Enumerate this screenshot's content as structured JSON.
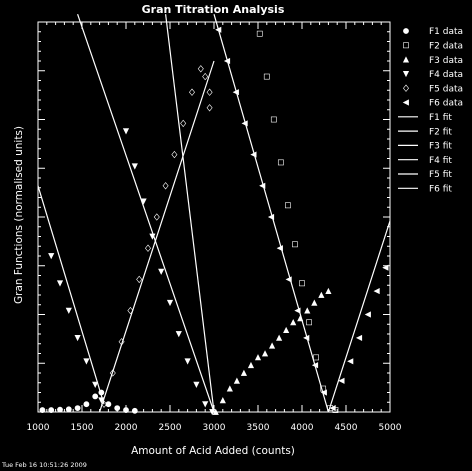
{
  "chart_data": {
    "type": "scatter",
    "title": "Gran Titration Analysis",
    "xlabel": "Amount of Acid Added (counts)",
    "ylabel": "Gran Functions (normalised units)",
    "xlim": [
      1000,
      5000
    ],
    "ylim": [
      0,
      1
    ],
    "xticks": [
      "1000",
      "1500",
      "2000",
      "2500",
      "3000",
      "3500",
      "4000",
      "4500",
      "5000"
    ],
    "footer": "Tue Feb 16 10:51:26 2009",
    "colors": {
      "background": "#000000",
      "foreground": "#ffffff"
    },
    "series": [
      {
        "name": "F1 data",
        "marker": "circle",
        "x": [
          1050,
          1150,
          1250,
          1350,
          1450,
          1550,
          1650,
          1720,
          1800,
          1900,
          2000,
          2100
        ],
        "y": [
          0.005,
          0.005,
          0.006,
          0.007,
          0.01,
          0.02,
          0.04,
          0.05,
          0.02,
          0.01,
          0.005,
          0.003
        ]
      },
      {
        "name": "F2 data",
        "marker": "square",
        "x": [
          3520,
          3600,
          3680,
          3760,
          3840,
          3920,
          4000,
          4080,
          4160,
          4240,
          4320,
          4380
        ],
        "y": [
          0.97,
          0.86,
          0.75,
          0.64,
          0.53,
          0.43,
          0.33,
          0.23,
          0.14,
          0.06,
          0.01,
          0.005
        ]
      },
      {
        "name": "F3 data",
        "marker": "triangle-up",
        "x": [
          3020,
          3100,
          3180,
          3260,
          3340,
          3420,
          3500,
          3580,
          3660,
          3740,
          3820,
          3900,
          3980,
          4060,
          4140,
          4220,
          4300
        ],
        "y": [
          0.0,
          0.03,
          0.06,
          0.08,
          0.1,
          0.12,
          0.14,
          0.15,
          0.17,
          0.19,
          0.21,
          0.23,
          0.24,
          0.26,
          0.28,
          0.3,
          0.31
        ]
      },
      {
        "name": "F4 data",
        "marker": "triangle-down",
        "x": [
          1150,
          1250,
          1350,
          1450,
          1550,
          1650,
          1720,
          2000,
          2100,
          2200,
          2300,
          2400,
          2500,
          2600,
          2700,
          2800,
          2900,
          2980
        ],
        "y": [
          0.4,
          0.33,
          0.26,
          0.19,
          0.13,
          0.07,
          0.03,
          0.72,
          0.63,
          0.54,
          0.45,
          0.36,
          0.28,
          0.2,
          0.13,
          0.07,
          0.02,
          0.0
        ]
      },
      {
        "name": "F5 data",
        "marker": "diamond",
        "x": [
          1750,
          1850,
          1950,
          2050,
          2150,
          2250,
          2350,
          2450,
          2550,
          2650,
          2750,
          2850,
          2900,
          2950,
          2950
        ],
        "y": [
          0.02,
          0.1,
          0.18,
          0.26,
          0.34,
          0.42,
          0.5,
          0.58,
          0.66,
          0.74,
          0.82,
          0.88,
          0.86,
          0.82,
          0.78
        ]
      },
      {
        "name": "F6 data",
        "marker": "triangle-left",
        "x": [
          3050,
          3150,
          3250,
          3350,
          3450,
          3550,
          3650,
          3750,
          3850,
          3950,
          4050,
          4150,
          4250,
          4350,
          4450,
          4550,
          4650,
          4750,
          4850,
          4950
        ],
        "y": [
          0.98,
          0.9,
          0.82,
          0.74,
          0.66,
          0.58,
          0.5,
          0.42,
          0.34,
          0.26,
          0.19,
          0.12,
          0.05,
          0.01,
          0.08,
          0.13,
          0.19,
          0.25,
          0.31,
          0.37
        ]
      }
    ],
    "fits": [
      {
        "name": "F1 fit",
        "x": [
          1000,
          1750
        ],
        "y": [
          0.58,
          0.02
        ]
      },
      {
        "name": "F2 fit",
        "x": [
          1450,
          3000
        ],
        "y": [
          1.02,
          0.0
        ]
      },
      {
        "name": "F3 fit",
        "x": [
          2450,
          3000
        ],
        "y": [
          1.02,
          0.0
        ]
      },
      {
        "name": "F4 fit",
        "x": [
          3000,
          4300
        ],
        "y": [
          1.02,
          0.0
        ]
      },
      {
        "name": "F5 fit",
        "x": [
          1700,
          3000
        ],
        "y": [
          0.0,
          0.9
        ]
      },
      {
        "name": "F6 fit",
        "x": [
          4300,
          5000
        ],
        "y": [
          0.0,
          0.49
        ]
      }
    ]
  }
}
